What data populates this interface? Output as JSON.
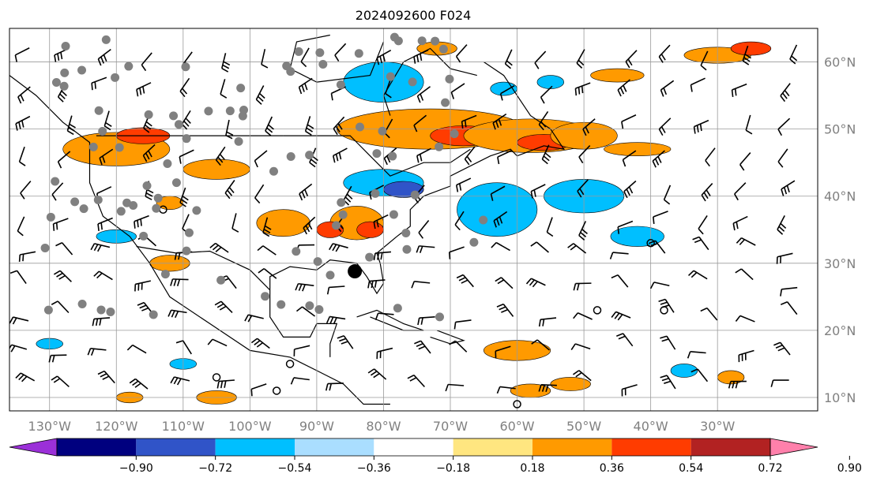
{
  "title": "2024092600 F024",
  "map": {
    "lon_range": [
      -136,
      -15
    ],
    "lat_range": [
      8,
      65
    ],
    "lon_labels": [
      "130°W",
      "120°W",
      "110°W",
      "100°W",
      "90°W",
      "80°W",
      "70°W",
      "60°W",
      "50°W",
      "40°W",
      "30°W"
    ],
    "lon_values": [
      -130,
      -120,
      -110,
      -100,
      -90,
      -80,
      -70,
      -60,
      -50,
      -40,
      -30
    ],
    "lat_labels": [
      "60°N",
      "50°N",
      "40°N",
      "30°N",
      "20°N",
      "10°N"
    ],
    "lat_values": [
      60,
      50,
      40,
      30,
      20,
      10
    ],
    "grid": true,
    "marker_center": {
      "lon": -84.3,
      "lat": 28.8
    }
  },
  "colorbar": {
    "labels": [
      "−0.90",
      "−0.72",
      "−0.54",
      "−0.36",
      "−0.18",
      "0.18",
      "0.36",
      "0.54",
      "0.72",
      "0.90"
    ],
    "colors": [
      "#9b30d8",
      "#00007f",
      "#3054c8",
      "#00bfff",
      "#aadeff",
      "#ffffff",
      "#ffe680",
      "#ff9a00",
      "#ff3c00",
      "#b22222",
      "#ff80ab"
    ],
    "extend": "both"
  },
  "colors": {
    "orange": "#ff9a00",
    "redorange": "#ff3c00",
    "yellow": "#ffe680",
    "cyan": "#00bfff",
    "lightblue": "#aadeff",
    "blue": "#3054c8",
    "station_gray": "#808080"
  },
  "icons": [
    "wind-barb-icon",
    "station-dot-icon",
    "storm-center-icon",
    "calm-circle-icon"
  ]
}
